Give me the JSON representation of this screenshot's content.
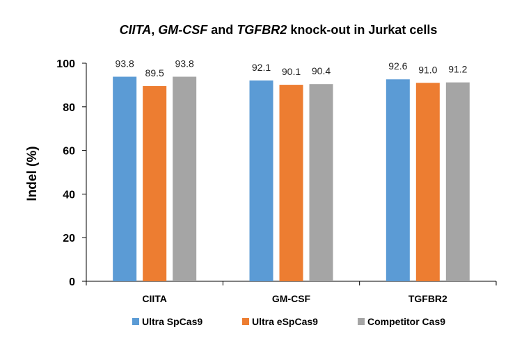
{
  "chart_data": {
    "type": "bar",
    "title": "CIITA, GM-CSF and TGFBR2 knock-out in Jurkat cells",
    "title_parts": [
      {
        "text": "CIITA",
        "italic": true
      },
      {
        "text": ", ",
        "italic": false
      },
      {
        "text": "GM-CSF",
        "italic": true
      },
      {
        "text": " and ",
        "italic": false
      },
      {
        "text": "TGFBR2",
        "italic": true
      },
      {
        "text": " knock-out in Jurkat cells",
        "italic": false
      }
    ],
    "xlabel": "",
    "ylabel": "Indel (%)",
    "ylim": [
      0,
      100
    ],
    "yticks": [
      0,
      20,
      40,
      60,
      80,
      100
    ],
    "categories": [
      "CIITA",
      "GM-CSF",
      "TGFBR2"
    ],
    "series": [
      {
        "name": "Ultra SpCas9",
        "color": "#5B9BD5",
        "values": [
          93.8,
          92.1,
          92.6
        ],
        "labels": [
          "93.8",
          "92.1",
          "92.6"
        ]
      },
      {
        "name": "Ultra eSpCas9",
        "color": "#ED7D31",
        "values": [
          89.5,
          90.1,
          91.0
        ],
        "labels": [
          "89.5",
          "90.1",
          "91.0"
        ]
      },
      {
        "name": "Competitor Cas9",
        "color": "#A5A5A5",
        "values": [
          93.8,
          90.4,
          91.2
        ],
        "labels": [
          "93.8",
          "90.4",
          "91.2"
        ]
      }
    ],
    "grid": false,
    "legend_position": "bottom"
  }
}
